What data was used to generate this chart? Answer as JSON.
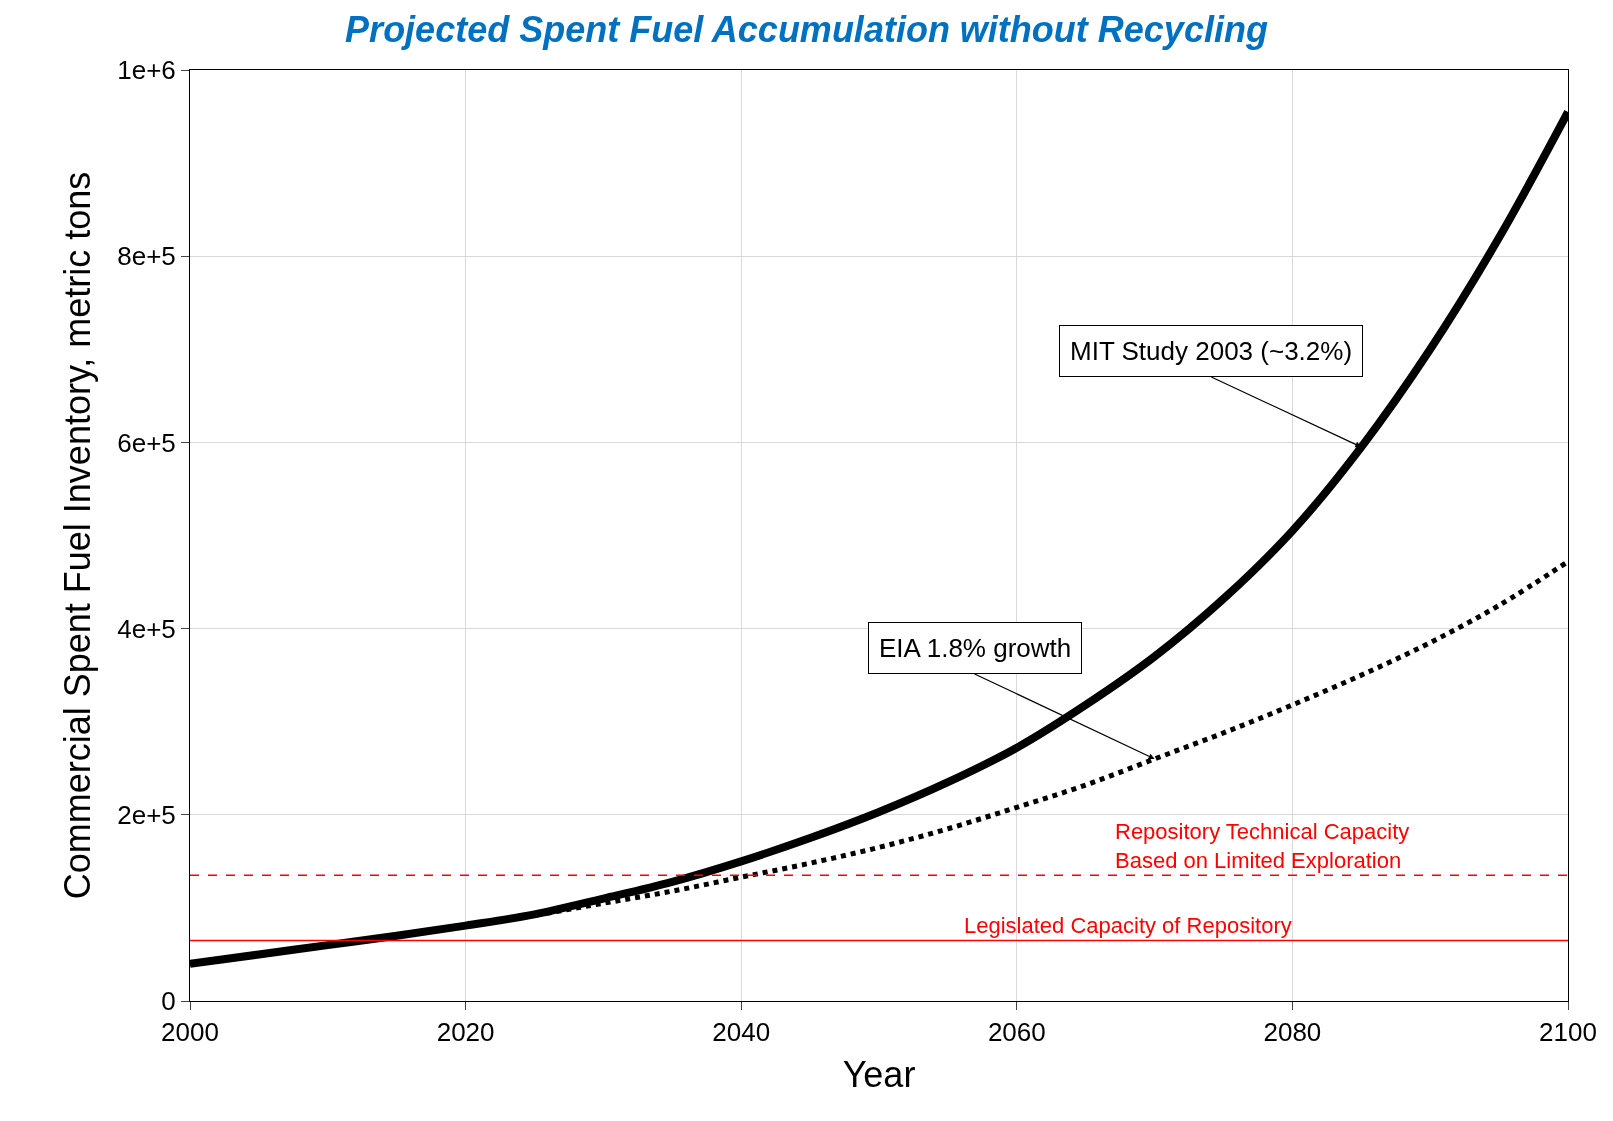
{
  "chart_data": {
    "type": "line",
    "title": "Projected Spent Fuel Accumulation without Recycling",
    "xlabel": "Year",
    "ylabel": "Commercial Spent Fuel Inventory, metric tons",
    "x": [
      2000,
      2005,
      2010,
      2015,
      2020,
      2025,
      2030,
      2035,
      2040,
      2045,
      2050,
      2055,
      2060,
      2065,
      2070,
      2075,
      2080,
      2085,
      2090,
      2095,
      2100
    ],
    "series": [
      {
        "color": "#000000",
        "line_style": "solid",
        "values": [
          40000,
          50000,
          60000,
          70000,
          81000,
          93000,
          110000,
          128000,
          150000,
          175000,
          203000,
          235000,
          272000,
          318000,
          370000,
          432000,
          505000,
          595000,
          700000,
          820000,
          955000
        ]
      },
      {
        "color": "#000000",
        "line_style": "dotted",
        "values": [
          40000,
          50000,
          60000,
          70000,
          80000,
          92000,
          105000,
          118000,
          133000,
          148000,
          165000,
          185000,
          208000,
          232000,
          260000,
          288000,
          318000,
          350000,
          385000,
          425000,
          472000
        ]
      }
    ],
    "annotations": [
      {
        "text": "MIT Study 2003 (~3.2%)",
        "x": 2085,
        "y": 595000
      },
      {
        "text": "EIA 1.8% growth",
        "x": 2070,
        "y": 260000
      }
    ],
    "ref_lines": [
      {
        "axis": "y",
        "value": 135000,
        "label": "Repository Technical Capacity\nBased on Limited Exploration",
        "color": "#ff0000",
        "line_style": "dashed"
      },
      {
        "axis": "y",
        "value": 65000,
        "label": "Legislated Capacity of Repository",
        "color": "#ff0000",
        "line_style": "solid"
      }
    ],
    "xlim": [
      2000,
      2100
    ],
    "xticks": [
      2000,
      2020,
      2040,
      2060,
      2080,
      2100
    ],
    "ylim": [
      0,
      1000000
    ],
    "yticks": [
      0,
      {
        "value": 200000,
        "label": "2e+5"
      },
      {
        "value": 400000,
        "label": "4e+5"
      },
      {
        "value": 600000,
        "label": "6e+5"
      },
      {
        "value": 800000,
        "label": "8e+5"
      },
      {
        "value": 1000000,
        "label": "1e+6"
      }
    ],
    "grid": true,
    "legend": false
  }
}
